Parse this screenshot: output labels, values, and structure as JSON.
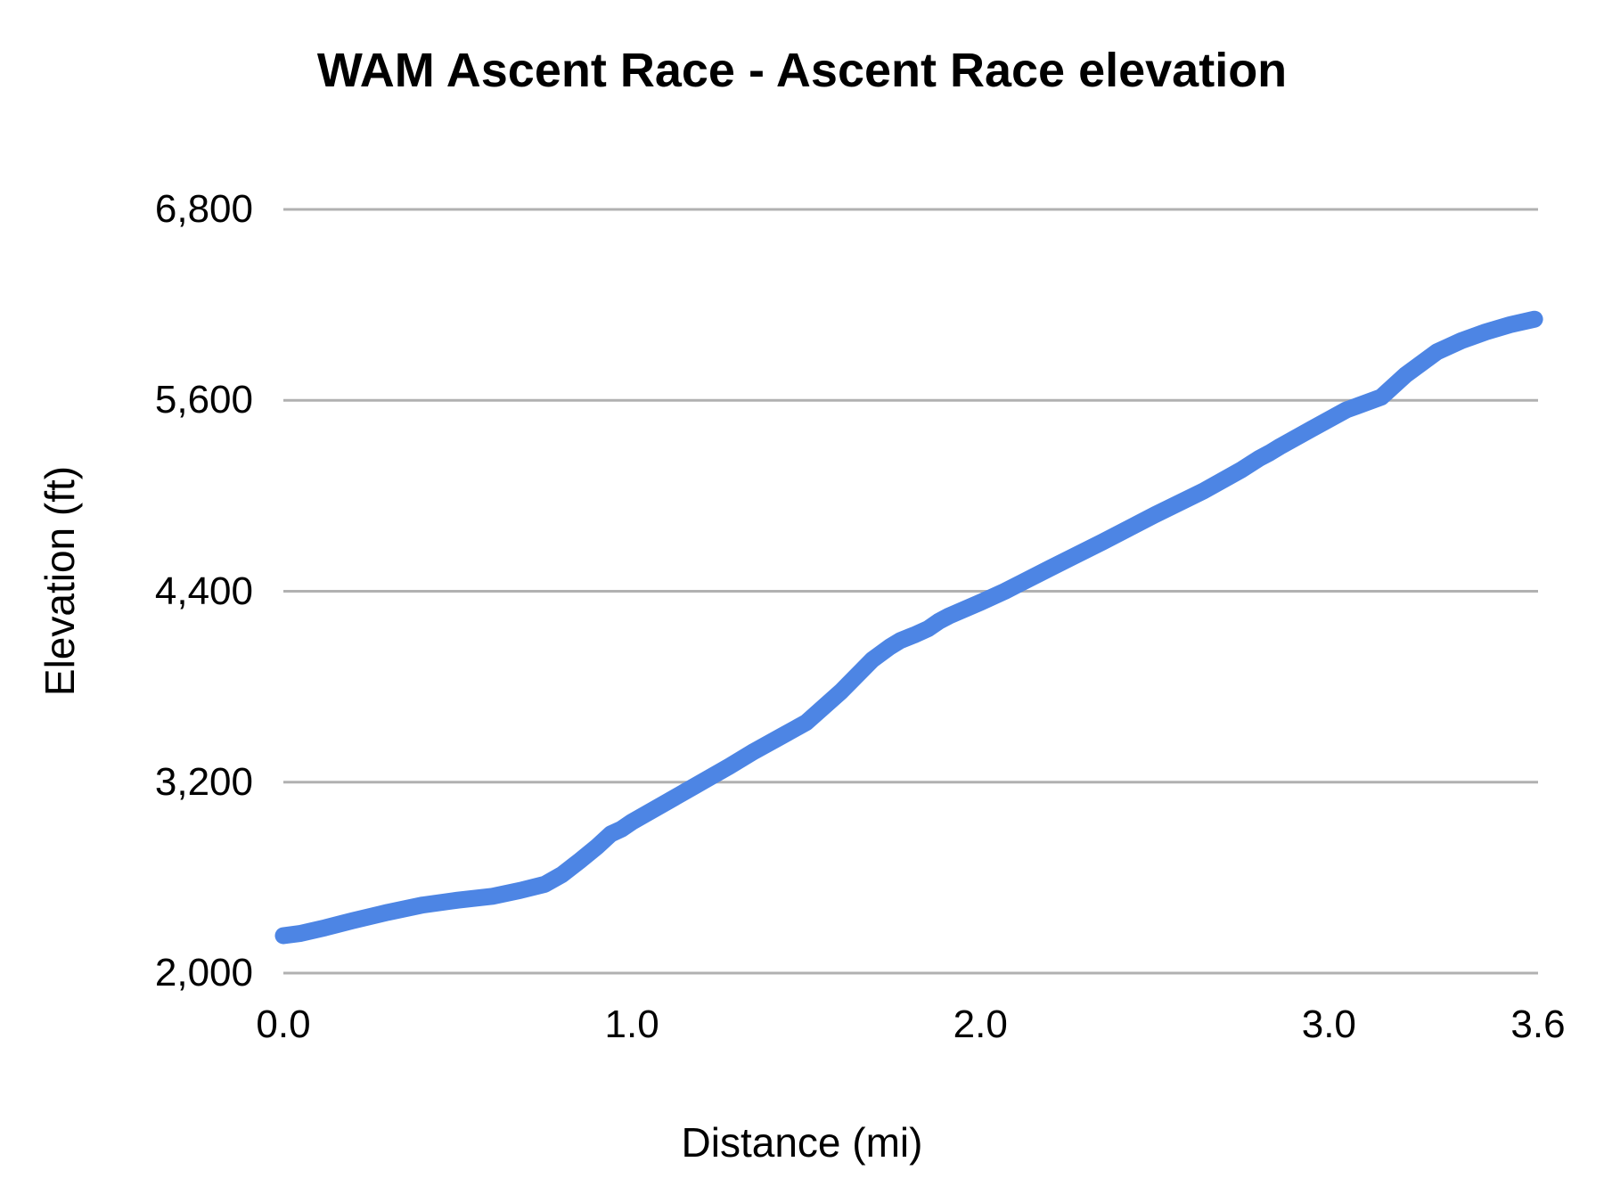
{
  "chart_data": {
    "type": "line",
    "title": "WAM Ascent Race - Ascent Race elevation",
    "xlabel": "Distance (mi)",
    "ylabel": "Elevation (ft)",
    "xlim": [
      0,
      3.6
    ],
    "ylim": [
      2000,
      6800
    ],
    "grid": "horizontal",
    "legend": "none",
    "x_tick_labels": [
      "0.0",
      "1.0",
      "2.0",
      "3.0",
      "3.6"
    ],
    "x_tick_values": [
      0,
      1,
      2,
      3,
      3.6
    ],
    "y_tick_labels": [
      "2,000",
      "3,200",
      "4,400",
      "5,600",
      "6,800"
    ],
    "y_tick_values": [
      2000,
      3200,
      4400,
      5600,
      6800
    ],
    "series": [
      {
        "name": "Ascent Race elevation",
        "color": "#4d85e4",
        "x": [
          0.0,
          0.05,
          0.12,
          0.2,
          0.3,
          0.4,
          0.5,
          0.6,
          0.68,
          0.75,
          0.8,
          0.85,
          0.9,
          0.94,
          0.97,
          1.0,
          1.1,
          1.2,
          1.28,
          1.35,
          1.43,
          1.5,
          1.6,
          1.69,
          1.74,
          1.77,
          1.81,
          1.85,
          1.88,
          1.91,
          2.0,
          2.07,
          2.2,
          2.35,
          2.5,
          2.64,
          2.75,
          2.8,
          2.83,
          2.86,
          2.95,
          3.05,
          3.15,
          3.22,
          3.31,
          3.38,
          3.45,
          3.52,
          3.59
        ],
        "y": [
          2235,
          2250,
          2285,
          2330,
          2382,
          2428,
          2458,
          2483,
          2520,
          2558,
          2620,
          2705,
          2795,
          2875,
          2905,
          2950,
          3075,
          3200,
          3300,
          3393,
          3490,
          3575,
          3770,
          3970,
          4050,
          4090,
          4125,
          4165,
          4210,
          4245,
          4330,
          4400,
          4545,
          4710,
          4880,
          5030,
          5165,
          5235,
          5270,
          5310,
          5420,
          5540,
          5620,
          5760,
          5905,
          5975,
          6030,
          6075,
          6110
        ]
      }
    ]
  },
  "style": {
    "line_color": "#4d85e4",
    "grid_color": "#b1b1b1",
    "text_color": "#000000",
    "background": "#ffffff"
  }
}
